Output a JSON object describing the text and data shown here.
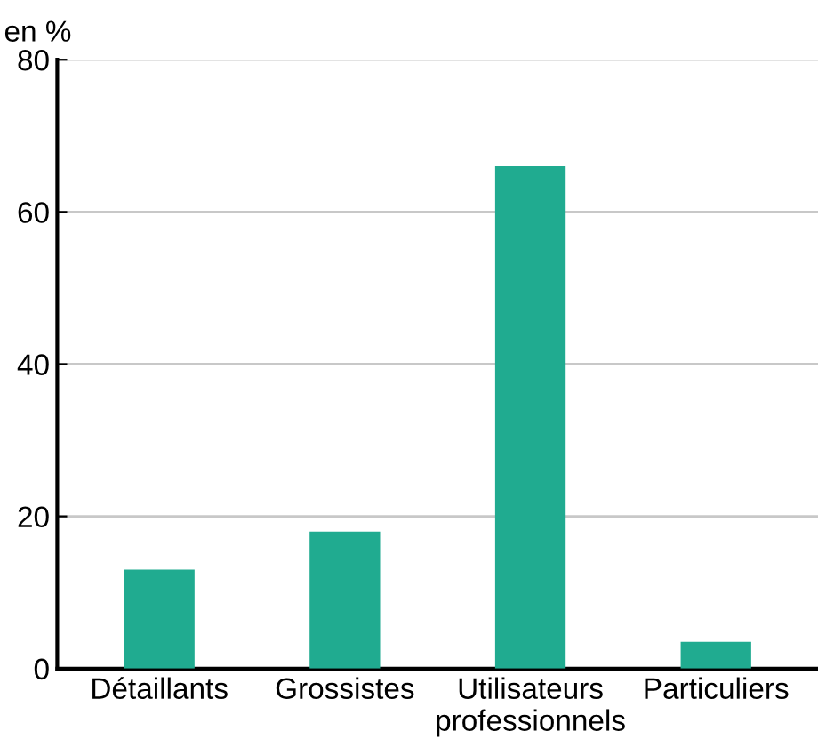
{
  "chart_data": {
    "type": "bar",
    "ylabel": "en %",
    "categories": [
      "Détaillants",
      "Grossistes",
      "Utilisateurs\nprofessionnels",
      "Particuliers"
    ],
    "values": [
      13,
      18,
      66,
      3.5
    ],
    "color": "#20ab90",
    "ylim": [
      0,
      80
    ],
    "yticks": [
      0,
      20,
      40,
      60,
      80
    ],
    "grid": "y"
  }
}
